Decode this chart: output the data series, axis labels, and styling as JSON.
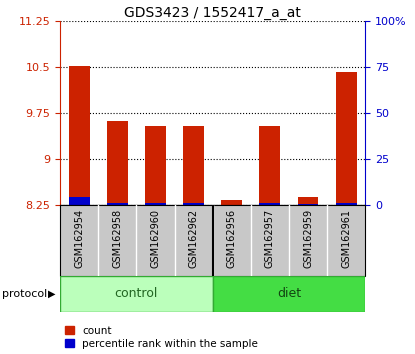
{
  "title": "GDS3423 / 1552417_a_at",
  "samples": [
    "GSM162954",
    "GSM162958",
    "GSM162960",
    "GSM162962",
    "GSM162956",
    "GSM162957",
    "GSM162959",
    "GSM162961"
  ],
  "groups": [
    "control",
    "control",
    "control",
    "control",
    "diet",
    "diet",
    "diet",
    "diet"
  ],
  "red_values": [
    10.52,
    9.62,
    9.55,
    9.55,
    8.33,
    9.55,
    8.38,
    10.42
  ],
  "blue_values": [
    8.38,
    8.29,
    8.28,
    8.28,
    8.25,
    8.28,
    8.27,
    8.29
  ],
  "ylim_left": [
    8.25,
    11.25
  ],
  "yticks_left": [
    8.25,
    9.0,
    9.75,
    10.5,
    11.25
  ],
  "ytick_labels_left": [
    "8.25",
    "9",
    "9.75",
    "10.5",
    "11.25"
  ],
  "yticks_right_vals": [
    0,
    25,
    50,
    75,
    100
  ],
  "ytick_labels_right": [
    "0",
    "25",
    "50",
    "75",
    "100%"
  ],
  "left_axis_color": "#cc2200",
  "right_axis_color": "#0000cc",
  "bar_red": "#cc2200",
  "bar_blue": "#0000cc",
  "control_color_light": "#ccffaa",
  "diet_color": "#44dd44",
  "protocol_label": "protocol",
  "group_control": "control",
  "group_diet": "diet",
  "legend_count": "count",
  "legend_percentile": "percentile rank within the sample",
  "n_control": 4,
  "n_diet": 4
}
